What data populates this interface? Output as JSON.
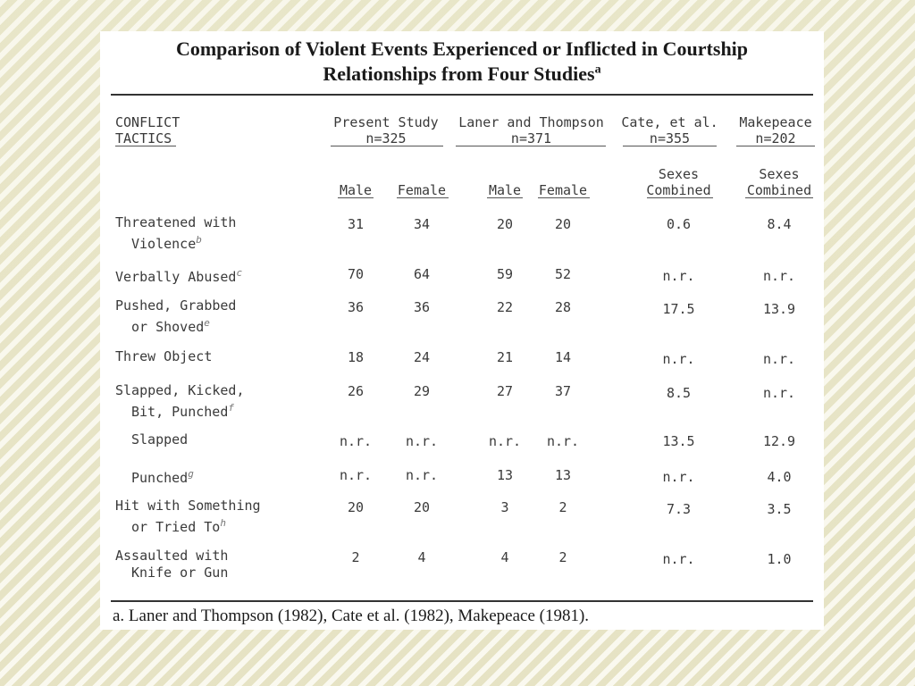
{
  "title": {
    "line1": "Comparison of Violent Events Experienced or Inflicted in Courtship",
    "line2": "Relationships from Four Studies",
    "marker": "a"
  },
  "header": {
    "tactics": [
      "CONFLICT",
      "TACTICS"
    ],
    "studies": [
      {
        "name": "Present Study",
        "n": "n=325"
      },
      {
        "name": "Laner and Thompson",
        "n": "n=371"
      },
      {
        "name": "Cate, et al.",
        "n": "n=355"
      },
      {
        "name": "Makepeace",
        "n": "n=202"
      }
    ],
    "subcols": [
      "Male",
      "Female",
      "Male",
      "Female",
      "Sexes\nCombined",
      "Sexes\nCombined"
    ],
    "sexes": "Sexes",
    "combined": "Combined"
  },
  "rows": [
    {
      "label": [
        "Threatened with",
        "Violence"
      ],
      "mark": "b",
      "values": [
        "31",
        "34",
        "20",
        "20",
        "0.6",
        "8.4"
      ]
    },
    {
      "label": [
        "Verbally Abused"
      ],
      "mark": "c",
      "values": [
        "70",
        "64",
        "59",
        "52",
        "n.r.",
        "n.r."
      ]
    },
    {
      "label": [
        "Pushed, Grabbed",
        "or Shoved"
      ],
      "mark": "e",
      "values": [
        "36",
        "36",
        "22",
        "28",
        "17.5",
        "13.9"
      ]
    },
    {
      "label": [
        "Threw Object"
      ],
      "mark": "",
      "values": [
        "18",
        "24",
        "21",
        "14",
        "n.r.",
        "n.r."
      ]
    },
    {
      "label": [
        "Slapped, Kicked,",
        "Bit, Punched"
      ],
      "mark": "f",
      "values": [
        "26",
        "29",
        "27",
        "37",
        "8.5",
        "n.r."
      ]
    },
    {
      "label": [
        "",
        "Slapped"
      ],
      "mark": "",
      "values": [
        "n.r.",
        "n.r.",
        "n.r.",
        "n.r.",
        "13.5",
        "12.9"
      ]
    },
    {
      "label": [
        "",
        "Punched"
      ],
      "mark": "g",
      "values": [
        "n.r.",
        "n.r.",
        "13",
        "13",
        "n.r.",
        "4.0"
      ]
    },
    {
      "label": [
        "Hit with Something",
        "or Tried To"
      ],
      "mark": "h",
      "values": [
        "20",
        "20",
        "3",
        "2",
        "7.3",
        "3.5"
      ]
    },
    {
      "label": [
        "Assaulted with",
        "Knife or Gun"
      ],
      "mark": "",
      "values": [
        "2",
        "4",
        "4",
        "2",
        "n.r.",
        "1.0"
      ]
    }
  ],
  "footnote": "a. Laner and Thompson (1982), Cate et al. (1982), Makepeace (1981)."
}
